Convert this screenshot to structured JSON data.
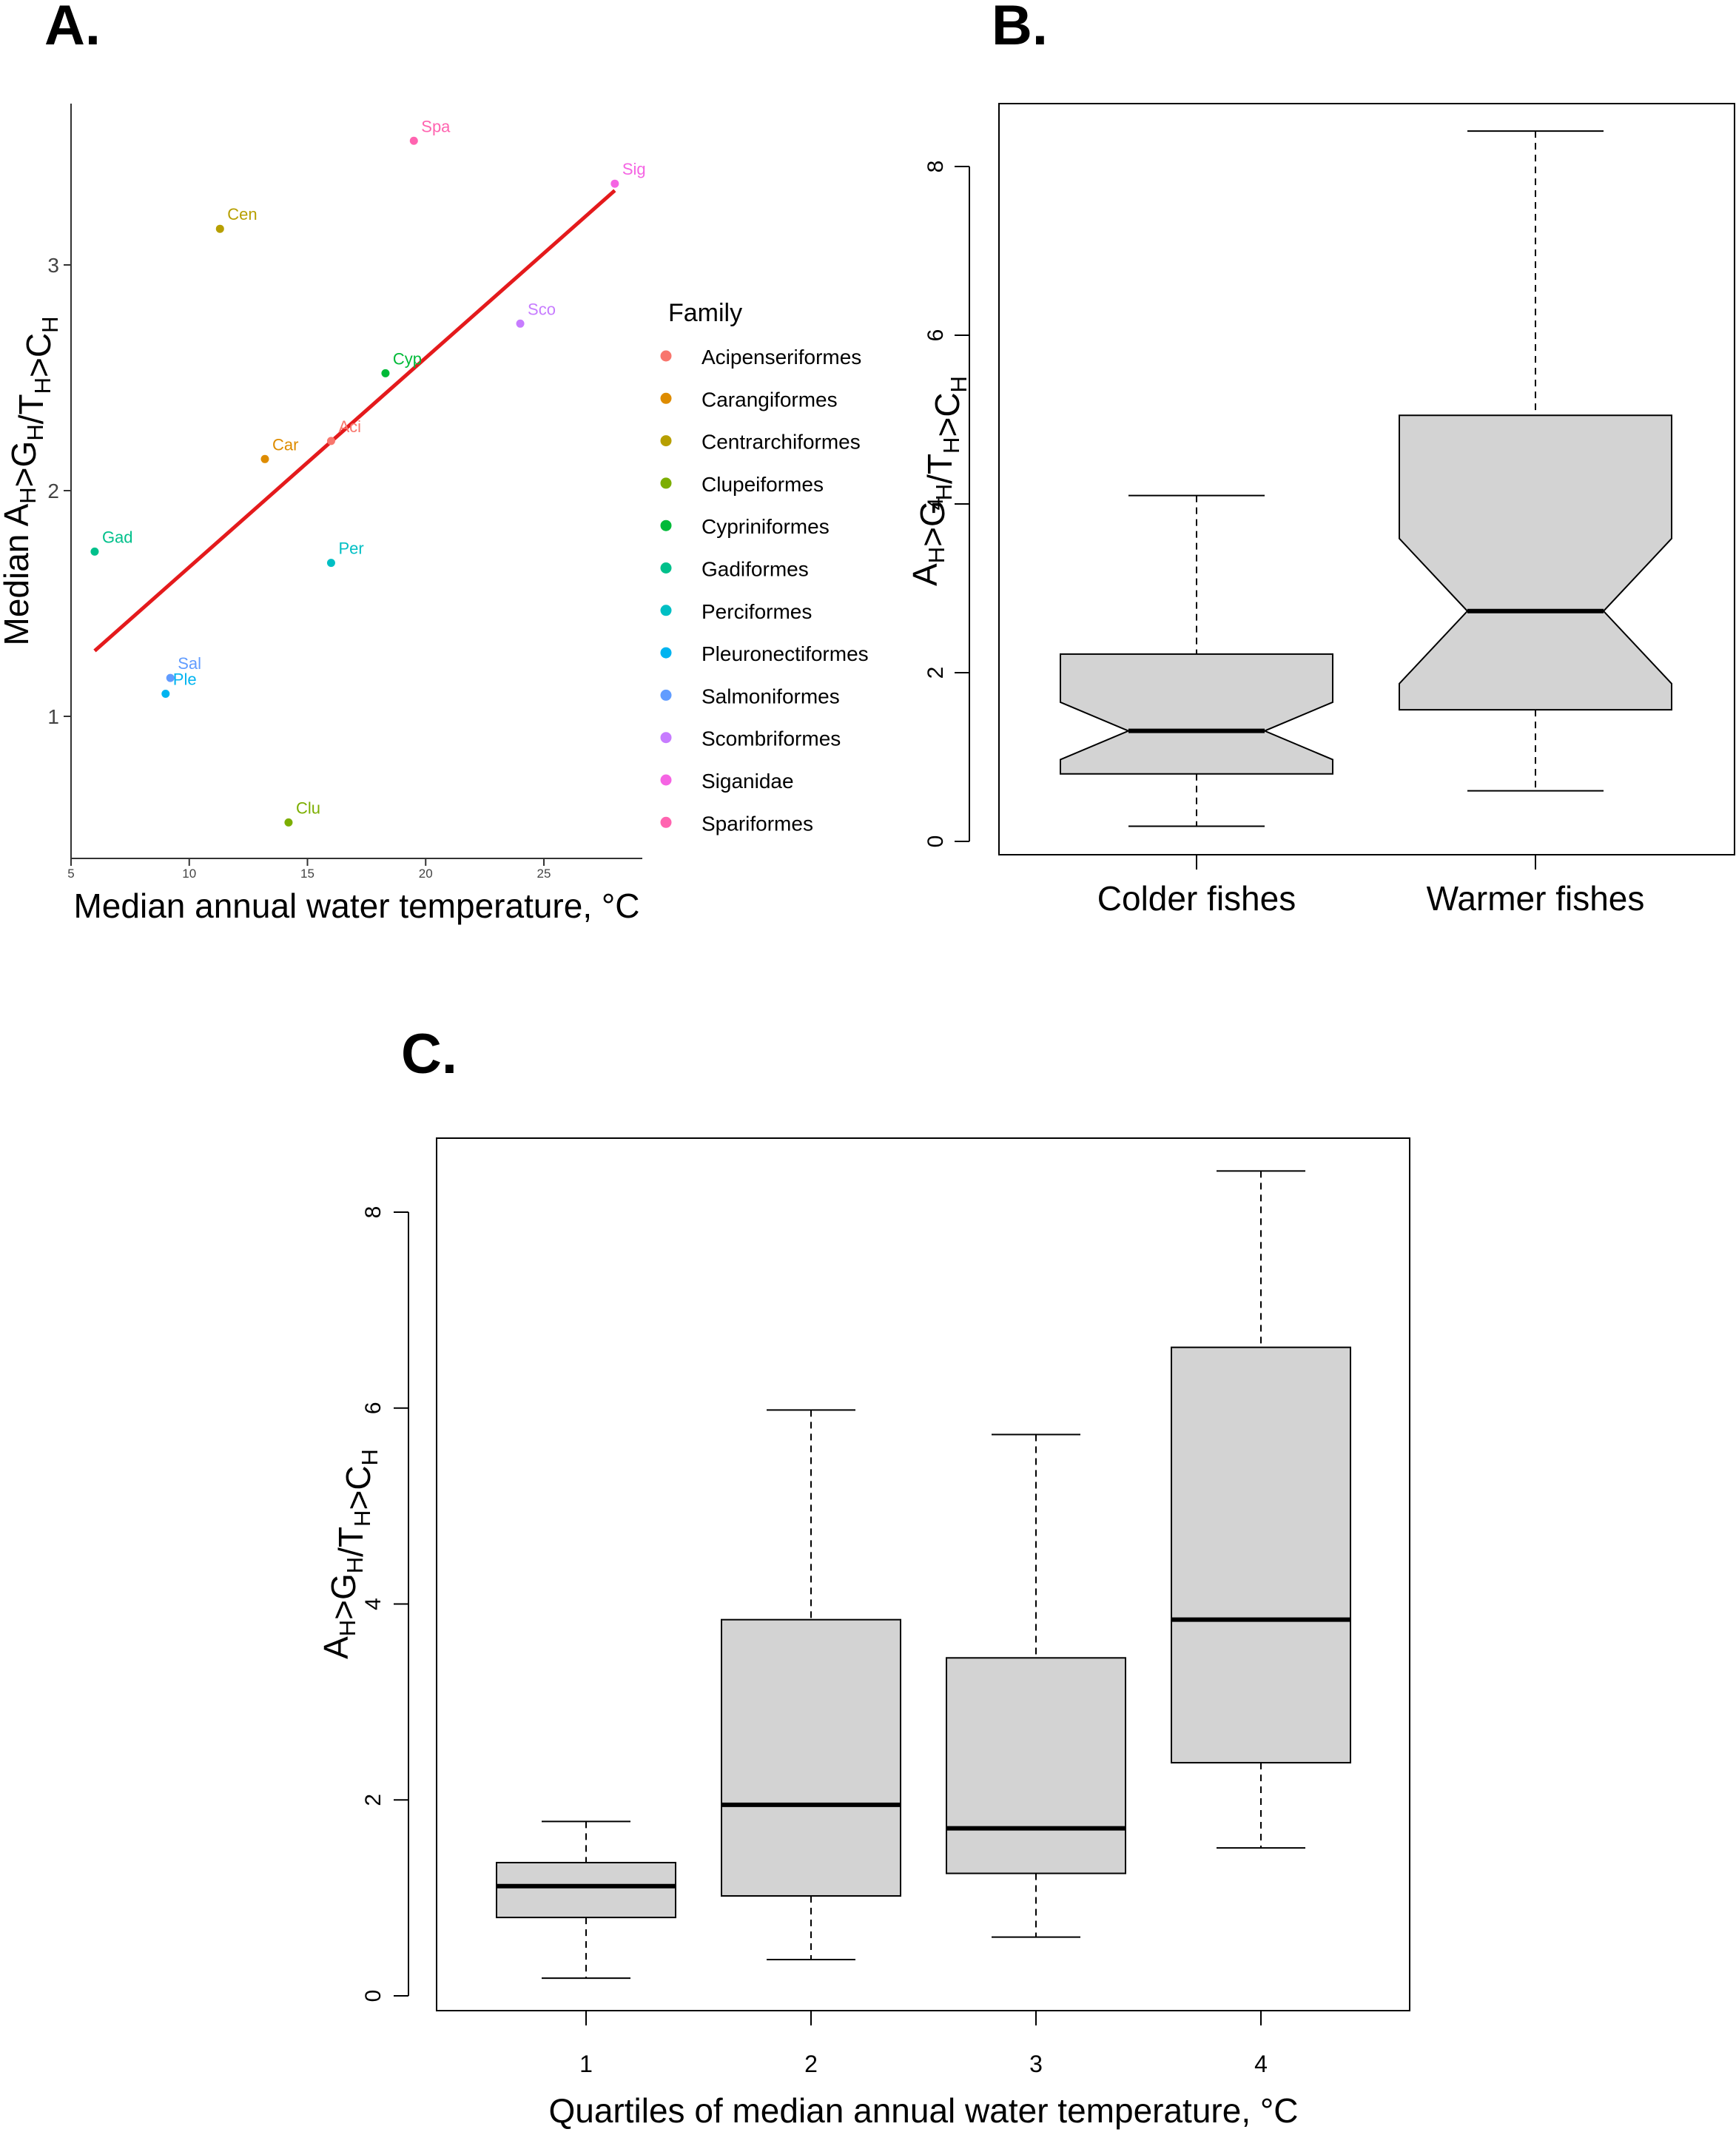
{
  "panels": {
    "A": {
      "letter": "A."
    },
    "B": {
      "letter": "B."
    },
    "C": {
      "letter": "C."
    }
  },
  "chart_data": [
    {
      "id": "A",
      "type": "scatter",
      "xlabel": "Median annual water temperature, °C",
      "ylabel": {
        "base": "Median A",
        "parts": [
          [
            "A",
            "H"
          ],
          [
            ">G",
            "H"
          ],
          [
            "/T",
            "H"
          ],
          [
            ">C",
            "H"
          ]
        ]
      },
      "xlim": [
        5,
        30
      ],
      "ylim": [
        0.4,
        3.65
      ],
      "xticks": [
        5,
        10,
        15,
        20,
        25
      ],
      "yticks": [
        1,
        2,
        3
      ],
      "grid": false,
      "legend": {
        "title": "Family",
        "position": "right",
        "items": [
          {
            "name": "Acipenseriformes",
            "color": "#F8766D"
          },
          {
            "name": "Carangiformes",
            "color": "#DE8C00"
          },
          {
            "name": "Centrarchiformes",
            "color": "#B79F00"
          },
          {
            "name": "Clupeiformes",
            "color": "#7CAE00"
          },
          {
            "name": "Cypriniformes",
            "color": "#00BA38"
          },
          {
            "name": "Gadiformes",
            "color": "#00C08B"
          },
          {
            "name": "Perciformes",
            "color": "#00BFC4"
          },
          {
            "name": "Pleuronectiformes",
            "color": "#00B4F0"
          },
          {
            "name": "Salmoniformes",
            "color": "#619CFF"
          },
          {
            "name": "Scombriformes",
            "color": "#C77CFF"
          },
          {
            "name": "Siganidae",
            "color": "#F564E3"
          },
          {
            "name": "Spariformes",
            "color": "#FF64B0"
          }
        ]
      },
      "points": [
        {
          "label": "Aci",
          "x": 16.0,
          "y": 2.22,
          "color": "#F8766D"
        },
        {
          "label": "Car",
          "x": 13.2,
          "y": 2.14,
          "color": "#DE8C00"
        },
        {
          "label": "Cen",
          "x": 11.3,
          "y": 3.16,
          "color": "#B79F00"
        },
        {
          "label": "Clu",
          "x": 14.2,
          "y": 0.53,
          "color": "#7CAE00"
        },
        {
          "label": "Cyp",
          "x": 18.3,
          "y": 2.52,
          "color": "#00BA38"
        },
        {
          "label": "Gad",
          "x": 6.0,
          "y": 1.73,
          "color": "#00C08B"
        },
        {
          "label": "Per",
          "x": 16.0,
          "y": 1.68,
          "color": "#00BFC4"
        },
        {
          "label": "Ple",
          "x": 9.0,
          "y": 1.1,
          "color": "#00B4F0"
        },
        {
          "label": "Sal",
          "x": 9.2,
          "y": 1.17,
          "color": "#619CFF"
        },
        {
          "label": "Sco",
          "x": 24.0,
          "y": 2.74,
          "color": "#C77CFF"
        },
        {
          "label": "Sig",
          "x": 28.0,
          "y": 3.36,
          "color": "#F564E3"
        },
        {
          "label": "Spa",
          "x": 19.5,
          "y": 3.55,
          "color": "#FF64B0"
        }
      ],
      "fit_line": {
        "x": [
          6.0,
          28.0
        ],
        "y": [
          1.29,
          3.33
        ],
        "color": "#e41a1c"
      }
    },
    {
      "id": "B",
      "type": "box",
      "notched": true,
      "ylabel": {
        "parts": [
          [
            "A",
            "H"
          ],
          [
            ">G",
            "H"
          ],
          [
            "/T",
            "H"
          ],
          [
            ">C",
            "H"
          ]
        ]
      },
      "ylim": [
        0,
        8.75
      ],
      "yticks": [
        0,
        2,
        4,
        6,
        8
      ],
      "categories": [
        "Colder fishes",
        "Warmer fishes"
      ],
      "boxes": [
        {
          "min": 0.18,
          "q1": 0.8,
          "median": 1.31,
          "q3": 2.22,
          "max": 4.1,
          "notch_low": 0.97,
          "notch_high": 1.65
        },
        {
          "min": 0.6,
          "q1": 1.56,
          "median": 2.73,
          "q3": 5.05,
          "max": 8.42,
          "notch_low": 1.87,
          "notch_high": 3.59
        }
      ],
      "fill": "#d3d3d3"
    },
    {
      "id": "C",
      "type": "box",
      "notched": false,
      "xlabel": "Quartiles of median annual water temperature, °C",
      "ylabel": {
        "parts": [
          [
            "A",
            "H"
          ],
          [
            ">G",
            "H"
          ],
          [
            "/T",
            "H"
          ],
          [
            ">C",
            "H"
          ]
        ]
      },
      "ylim": [
        0,
        8.75
      ],
      "yticks": [
        0,
        2,
        4,
        6,
        8
      ],
      "categories": [
        "1",
        "2",
        "3",
        "4"
      ],
      "boxes": [
        {
          "min": 0.18,
          "q1": 0.8,
          "median": 1.12,
          "q3": 1.36,
          "max": 1.78
        },
        {
          "min": 0.37,
          "q1": 1.02,
          "median": 1.95,
          "q3": 3.84,
          "max": 5.98
        },
        {
          "min": 0.6,
          "q1": 1.25,
          "median": 1.71,
          "q3": 3.45,
          "max": 5.73
        },
        {
          "min": 1.51,
          "q1": 2.38,
          "median": 3.84,
          "q3": 6.62,
          "max": 8.42
        }
      ],
      "fill": "#d3d3d3"
    }
  ]
}
